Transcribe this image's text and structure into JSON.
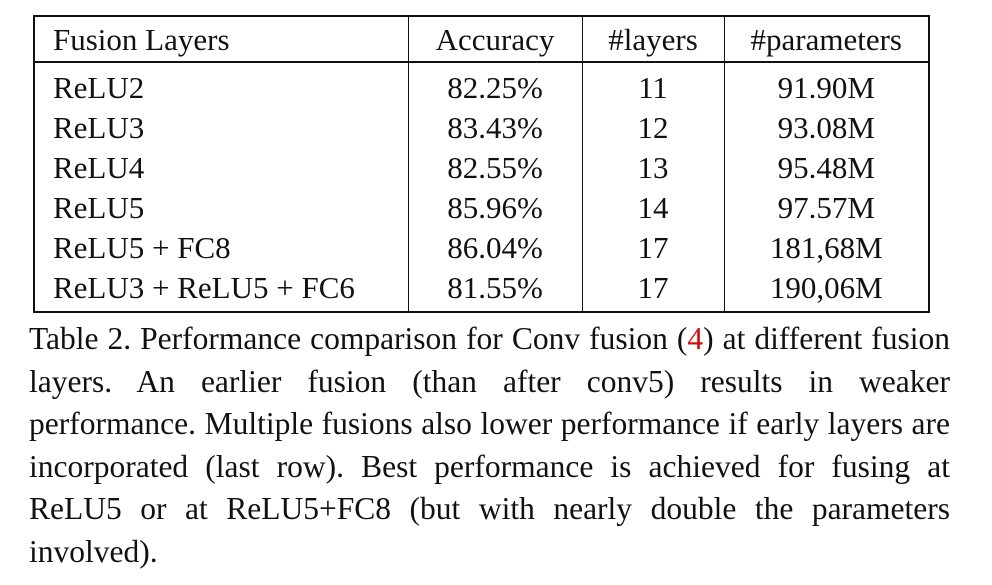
{
  "table": {
    "headers": {
      "fusion_layers": "Fusion Layers",
      "accuracy": "Accuracy",
      "layers": "#layers",
      "parameters": "#parameters"
    },
    "rows": [
      {
        "fusion": "ReLU2",
        "accuracy": "82.25%",
        "layers": "11",
        "parameters": "91.90M"
      },
      {
        "fusion": "ReLU3",
        "accuracy": "83.43%",
        "layers": "12",
        "parameters": "93.08M"
      },
      {
        "fusion": "ReLU4",
        "accuracy": "82.55%",
        "layers": "13",
        "parameters": "95.48M"
      },
      {
        "fusion": "ReLU5",
        "accuracy": "85.96%",
        "layers": "14",
        "parameters": "97.57M"
      },
      {
        "fusion": "ReLU5 + FC8",
        "accuracy": "86.04%",
        "layers": "17",
        "parameters": "181,68M"
      },
      {
        "fusion": "ReLU3 + ReLU5 + FC6",
        "accuracy": "81.55%",
        "layers": "17",
        "parameters": "190,06M"
      }
    ]
  },
  "caption": {
    "text_before_ref": "Table 2. Performance comparison for Conv fusion (",
    "ref": "4",
    "text_after_ref": ") at different fusion layers. An earlier fusion (than after conv5) results in weaker performance. Multiple fusions also lower performance if early layers are incorporated (last row). Best performance is achieved for fusing at ReLU5 or at ReLU5+FC8 (but with nearly double the parameters involved).",
    "ref_color": "#d01010"
  }
}
